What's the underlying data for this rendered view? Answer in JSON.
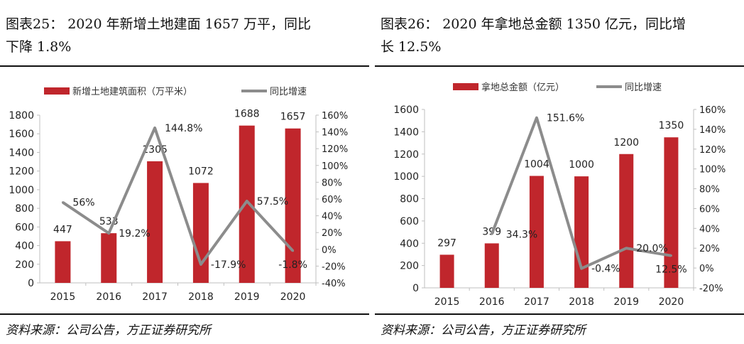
{
  "colors": {
    "bar": "#C0262C",
    "line": "#8C8C8C",
    "axis": "#BFBFBF"
  },
  "panels": [
    {
      "title_line1": "图表25：  2020 年新增土地建面 1657 万平，同比",
      "title_line2": "下降 1.8%",
      "source": "资料来源：公司公告，方正证券研究所"
    },
    {
      "title_line1": "图表26：  2020 年拿地总金额 1350 亿元，同比增",
      "title_line2": "长 12.5%",
      "source": "资料来源：公司公告，方正证券研究所"
    }
  ],
  "chart_data": [
    {
      "type": "bar+line",
      "categories": [
        "2015",
        "2016",
        "2017",
        "2018",
        "2019",
        "2020"
      ],
      "series": [
        {
          "name": "新增土地建筑面积（万平米）",
          "type": "bar",
          "axis": "left",
          "values": [
            447,
            533,
            1305,
            1072,
            1688,
            1657
          ],
          "labels": [
            "447",
            "533",
            "1305",
            "1072",
            "1688",
            "1657"
          ]
        },
        {
          "name": "同比增速",
          "type": "line",
          "axis": "right",
          "values": [
            56,
            19.2,
            144.8,
            -17.9,
            57.5,
            -1.8
          ],
          "labels": [
            "56%",
            "19.2%",
            "144.8%",
            "-17.9%",
            "57.5%",
            "-1.8%"
          ]
        }
      ],
      "left_axis": {
        "range": [
          0,
          1800
        ],
        "ticks": [
          "0",
          "200",
          "400",
          "600",
          "800",
          "1000",
          "1200",
          "1400",
          "1600",
          "1800"
        ]
      },
      "right_axis": {
        "range": [
          -40,
          160
        ],
        "ticks": [
          "-40%",
          "-20%",
          "0%",
          "20%",
          "40%",
          "60%",
          "80%",
          "100%",
          "120%",
          "140%",
          "160%"
        ]
      },
      "grid": false,
      "legend": "top"
    },
    {
      "type": "bar+line",
      "categories": [
        "2015",
        "2016",
        "2017",
        "2018",
        "2019",
        "2020"
      ],
      "series": [
        {
          "name": "拿地总金额（亿元）",
          "type": "bar",
          "axis": "left",
          "values": [
            297,
            399,
            1004,
            1000,
            1200,
            1350
          ],
          "labels": [
            "297",
            "399",
            "1004",
            "1000",
            "1200",
            "1350"
          ]
        },
        {
          "name": "同比增速",
          "type": "line",
          "axis": "right",
          "values": [
            null,
            34.3,
            151.6,
            -0.4,
            20.0,
            12.5
          ],
          "labels": [
            "",
            "34.3%",
            "151.6%",
            "-0.4%",
            "20.0%",
            "12.5%"
          ]
        }
      ],
      "left_axis": {
        "range": [
          0,
          1600
        ],
        "ticks": [
          "0",
          "200",
          "400",
          "600",
          "800",
          "1000",
          "1200",
          "1400",
          "1600"
        ]
      },
      "right_axis": {
        "range": [
          -20,
          160
        ],
        "ticks": [
          "-20%",
          "0%",
          "20%",
          "40%",
          "60%",
          "80%",
          "100%",
          "120%",
          "140%",
          "160%"
        ]
      },
      "grid": false,
      "legend": "top"
    }
  ]
}
